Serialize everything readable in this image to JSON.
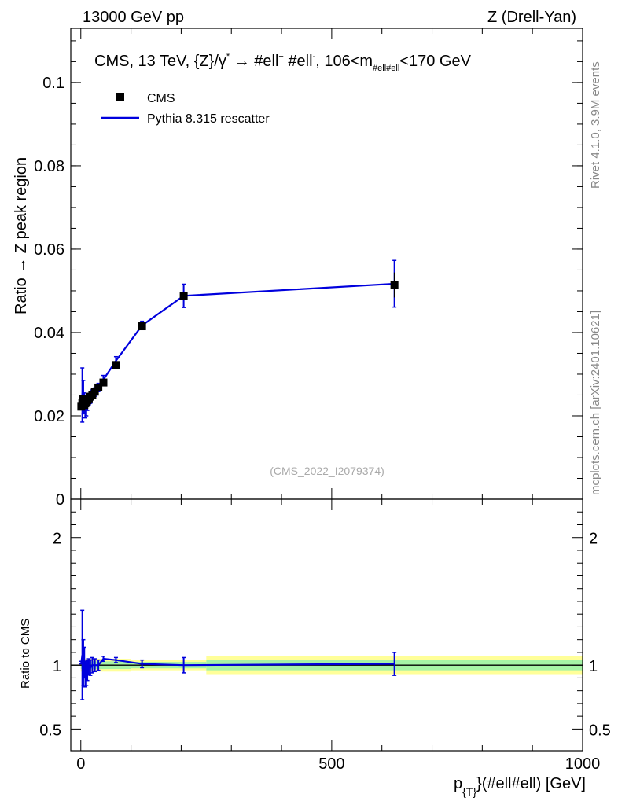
{
  "header": {
    "left": "13000 GeV pp",
    "right": "Z (Drell-Yan)"
  },
  "side_labels": {
    "rivet": "Rivet 4.1.0,  3.9M events",
    "mcplots": "mcplots.cern.ch [arXiv:2401.10621]"
  },
  "plot": {
    "title": "CMS, 13 TeV, {Z}/γ*  →  #ell⁺ #ell⁻, 106<m#ell#ell<170 GeV",
    "title_parts": {
      "main": "CMS, 13 TeV, {Z}/γ",
      "sup_star": "*",
      "arrow": " →  #ell",
      "sup_plus": "+",
      "mid": " #ell",
      "sup_minus": "-",
      "after": ", 106<m",
      "sub": "#ell#ell",
      "end": "<170 GeV"
    },
    "watermark": "(CMS_2022_I2079374)",
    "ylabel": "Ratio → Z peak region",
    "ratio_ylabel": "Ratio to CMS",
    "xlabel_parts": {
      "p": "p",
      "sub": "{T}",
      "rest": "}(#ell#ell) [GeV]"
    },
    "legend": {
      "data_label": "CMS",
      "mc_label": "Pythia 8.315 rescatter"
    },
    "colors": {
      "data": "#000000",
      "mc": "#0000dd",
      "band_inner": "#a6f3a6",
      "band_outer": "#ffff99"
    }
  },
  "chart_data": [
    {
      "type": "scatter",
      "panel": "main",
      "x_range": [
        -20,
        1000
      ],
      "ylim": [
        0,
        0.113
      ],
      "yticks": [
        0,
        0.02,
        0.04,
        0.06,
        0.08,
        0.1
      ],
      "ytick_labels": [
        "0",
        "0.02",
        "0.04",
        "0.06",
        "0.08",
        "0.1"
      ],
      "series": [
        {
          "name": "CMS",
          "style": "markers",
          "x": [
            1,
            3,
            5,
            7,
            9,
            11,
            13,
            16,
            19,
            23,
            28,
            35,
            45,
            70,
            122,
            205,
            625
          ],
          "y": [
            0.0222,
            0.0232,
            0.024,
            0.0226,
            0.023,
            0.0234,
            0.0237,
            0.024,
            0.0246,
            0.025,
            0.0258,
            0.0268,
            0.028,
            0.0322,
            0.0415,
            0.0488,
            0.0514
          ],
          "err": [
            0.0005,
            0.0005,
            0.0005,
            0.0005,
            0.0005,
            0.0005,
            0.0005,
            0.0005,
            0.0005,
            0.0005,
            0.0005,
            0.0005,
            0.0005,
            0.0005,
            0.0006,
            0.001,
            0.003
          ]
        },
        {
          "name": "Pythia 8.315 rescatter",
          "style": "line",
          "x": [
            1,
            3,
            5,
            7,
            9,
            11,
            13,
            16,
            19,
            23,
            28,
            35,
            45,
            70,
            122,
            205,
            625
          ],
          "y": [
            0.0225,
            0.025,
            0.0245,
            0.023,
            0.0215,
            0.0218,
            0.0228,
            0.0238,
            0.0242,
            0.025,
            0.0257,
            0.0268,
            0.0287,
            0.0332,
            0.0417,
            0.0488,
            0.0517
          ],
          "err": [
            0.0002,
            0.0065,
            0.004,
            0.0025,
            0.002,
            0.0018,
            0.0015,
            0.0012,
            0.0012,
            0.0012,
            0.001,
            0.001,
            0.001,
            0.001,
            0.001,
            0.0028,
            0.0056
          ]
        }
      ]
    },
    {
      "type": "scatter",
      "panel": "ratio",
      "x_range": [
        -20,
        1000
      ],
      "ylim": [
        0.33,
        2.3
      ],
      "yticks": [
        0.5,
        1,
        2
      ],
      "ytick_labels": [
        "0.5",
        "1",
        "2"
      ],
      "xticks": [
        0,
        500,
        1000
      ],
      "xtick_labels": [
        "0",
        "500",
        "1000"
      ],
      "bands": {
        "x_edges": [
          0,
          100,
          250,
          1000
        ],
        "inner": [
          [
            0.97,
            1.03
          ],
          [
            0.975,
            1.025
          ],
          [
            0.96,
            1.04
          ]
        ],
        "outer": [
          [
            0.95,
            1.05
          ],
          [
            0.96,
            1.04
          ],
          [
            0.93,
            1.07
          ]
        ]
      },
      "series": [
        {
          "name": "Pythia 8.315 rescatter",
          "x": [
            1,
            3,
            5,
            7,
            9,
            11,
            13,
            16,
            19,
            23,
            28,
            35,
            45,
            70,
            122,
            205,
            625
          ],
          "y": [
            1.02,
            1.08,
            1.02,
            1.02,
            0.93,
            0.93,
            0.96,
            0.99,
            0.98,
            1.0,
            1.0,
            1.0,
            1.05,
            1.04,
            1.01,
            1.0,
            1.01
          ],
          "err": [
            0.01,
            0.35,
            0.18,
            0.12,
            0.1,
            0.09,
            0.08,
            0.06,
            0.06,
            0.06,
            0.05,
            0.04,
            0.02,
            0.02,
            0.03,
            0.06,
            0.09
          ]
        }
      ]
    }
  ]
}
